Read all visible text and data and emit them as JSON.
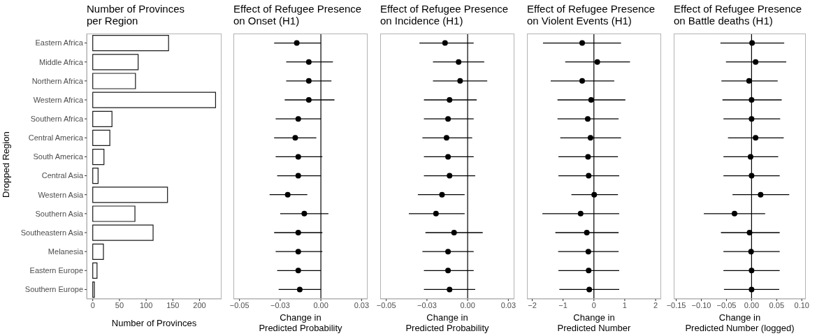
{
  "chart_data": [
    {
      "type": "bar",
      "orientation": "horizontal",
      "title": "Number of Provinces\nper Region",
      "xlabel": "Number of Provinces",
      "ylabel": "Dropped Region",
      "categories": [
        "Eastern Africa",
        "Middle Africa",
        "Northern Africa",
        "Western Africa",
        "Southern Africa",
        "Central America",
        "South America",
        "Central Asia",
        "Western Asia",
        "Southern Asia",
        "Southeastern Asia",
        "Melanesia",
        "Eastern Europe",
        "Southern Europe"
      ],
      "values": [
        142,
        85,
        80,
        230,
        36,
        32,
        21,
        10,
        140,
        79,
        113,
        20,
        8,
        3
      ],
      "color": "#ffffff",
      "xlim": [
        -11.4,
        241.2
      ],
      "xticks": [
        0,
        50,
        100,
        150,
        200
      ],
      "grid": false
    },
    {
      "type": "scatter",
      "orientation": "horizontal",
      "title": "Effect of Refugee Presence\non Onset (H1)",
      "xlabel": "Change in\nPredicted Probability",
      "tick_labels": "x",
      "marker": "circle",
      "color": "#000000",
      "values": [
        -0.016,
        -0.008,
        -0.008,
        -0.008,
        -0.015,
        -0.017,
        -0.015,
        -0.015,
        -0.022,
        -0.011,
        -0.015,
        -0.015,
        -0.015,
        -0.014
      ],
      "errors": [
        [
          -0.031,
          0.0
        ],
        [
          -0.023,
          0.008
        ],
        [
          -0.023,
          0.007
        ],
        [
          -0.024,
          0.009
        ],
        [
          -0.03,
          0.0
        ],
        [
          -0.031,
          -0.003
        ],
        [
          -0.03,
          0.001
        ],
        [
          -0.029,
          0.0
        ],
        [
          -0.034,
          -0.009
        ],
        [
          -0.027,
          0.005
        ],
        [
          -0.031,
          0.001
        ],
        [
          -0.03,
          0.001
        ],
        [
          -0.029,
          0.0
        ],
        [
          -0.028,
          0.0
        ]
      ],
      "xlim": [
        -0.058,
        0.031
      ],
      "xticks": [
        {
          "value": -0.054,
          "label": "−0.05"
        },
        {
          "value": -0.027,
          "label": "−0.03"
        },
        {
          "value": 0,
          "label": "0.00"
        },
        {
          "value": 0.027,
          "label": "0.03"
        }
      ],
      "ref_lines": [
        {
          "axis": "x",
          "value": 0,
          "color": "#000000"
        }
      ],
      "grid": false
    },
    {
      "type": "scatter",
      "orientation": "horizontal",
      "title": "Effect of Refugee Presence\non Incidence (H1)",
      "xlabel": "Change in\nPredicted Probability",
      "tick_labels": "x",
      "marker": "circle",
      "color": "#000000",
      "values": [
        -0.015,
        -0.006,
        -0.005,
        -0.012,
        -0.013,
        -0.014,
        -0.013,
        -0.012,
        -0.017,
        -0.021,
        -0.009,
        -0.013,
        -0.013,
        -0.012
      ],
      "errors": [
        [
          -0.032,
          0.004
        ],
        [
          -0.023,
          0.011
        ],
        [
          -0.023,
          0.013
        ],
        [
          -0.029,
          0.006
        ],
        [
          -0.029,
          0.004
        ],
        [
          -0.03,
          0.003
        ],
        [
          -0.029,
          0.004
        ],
        [
          -0.029,
          0.005
        ],
        [
          -0.033,
          -0.002
        ],
        [
          -0.039,
          -0.002
        ],
        [
          -0.028,
          0.01
        ],
        [
          -0.03,
          0.004
        ],
        [
          -0.029,
          0.004
        ],
        [
          -0.029,
          0.005
        ]
      ],
      "xlim": [
        -0.058,
        0.031
      ],
      "xticks": [
        {
          "value": -0.054,
          "label": "−0.05"
        },
        {
          "value": -0.027,
          "label": "−0.03"
        },
        {
          "value": 0,
          "label": "0.00"
        },
        {
          "value": 0.027,
          "label": "0.03"
        }
      ],
      "ref_lines": [
        {
          "axis": "x",
          "value": 0,
          "color": "#000000"
        }
      ],
      "grid": false
    },
    {
      "type": "scatter",
      "orientation": "horizontal",
      "title": "Effect of Refugee Presence\non Violent Events (H1)",
      "xlabel": "Change in\nPredicted Number",
      "tick_labels": "x",
      "marker": "circle",
      "color": "#000000",
      "values": [
        -0.38,
        0.11,
        -0.38,
        -0.09,
        -0.2,
        -0.11,
        -0.19,
        -0.17,
        0.01,
        -0.43,
        -0.23,
        -0.18,
        -0.17,
        -0.15
      ],
      "errors": [
        [
          -1.65,
          0.88
        ],
        [
          -0.93,
          1.17
        ],
        [
          -1.4,
          0.66
        ],
        [
          -1.18,
          1.02
        ],
        [
          -1.18,
          0.8
        ],
        [
          -1.09,
          0.88
        ],
        [
          -1.15,
          0.78
        ],
        [
          -1.15,
          0.82
        ],
        [
          -0.73,
          0.78
        ],
        [
          -1.67,
          0.82
        ],
        [
          -1.25,
          0.8
        ],
        [
          -1.16,
          0.8
        ],
        [
          -1.15,
          0.82
        ],
        [
          -1.12,
          0.82
        ]
      ],
      "xlim": [
        -2.17,
        2.18
      ],
      "xticks": [
        {
          "value": -2,
          "label": "−2"
        },
        {
          "value": -1,
          "label": "−1"
        },
        0,
        1,
        2
      ],
      "ref_lines": [
        {
          "axis": "x",
          "value": 0,
          "color": "#000000"
        }
      ],
      "grid": false
    },
    {
      "type": "scatter",
      "orientation": "horizontal",
      "title": "Effect of Refugee Presence\non Battle deaths (H1)",
      "xlabel": "Change in\nPredicted Number (logged)",
      "tick_labels": "x",
      "marker": "circle",
      "color": "#000000",
      "values": [
        0.001,
        0.008,
        -0.005,
        0.0,
        0.0,
        0.008,
        -0.002,
        0.0,
        0.018,
        -0.034,
        -0.004,
        -0.001,
        0.0,
        0.0
      ],
      "errors": [
        [
          -0.062,
          0.065
        ],
        [
          -0.051,
          0.069
        ],
        [
          -0.06,
          0.052
        ],
        [
          -0.058,
          0.06
        ],
        [
          -0.056,
          0.057
        ],
        [
          -0.047,
          0.064
        ],
        [
          -0.056,
          0.053
        ],
        [
          -0.056,
          0.056
        ],
        [
          -0.038,
          0.075
        ],
        [
          -0.095,
          0.027
        ],
        [
          -0.061,
          0.056
        ],
        [
          -0.056,
          0.056
        ],
        [
          -0.056,
          0.056
        ],
        [
          -0.055,
          0.055
        ]
      ],
      "xlim": [
        -0.155,
        0.108
      ],
      "xticks": [
        {
          "value": -0.15,
          "label": "−0.15"
        },
        {
          "value": -0.1,
          "label": "−0.10"
        },
        {
          "value": -0.05,
          "label": "−0.05"
        },
        {
          "value": 0,
          "label": "0.00"
        },
        {
          "value": 0.05,
          "label": "0.05"
        },
        {
          "value": 0.1,
          "label": "0.10"
        }
      ],
      "ref_lines": [
        {
          "axis": "x",
          "value": 0,
          "color": "#000000"
        }
      ],
      "grid": false
    }
  ]
}
